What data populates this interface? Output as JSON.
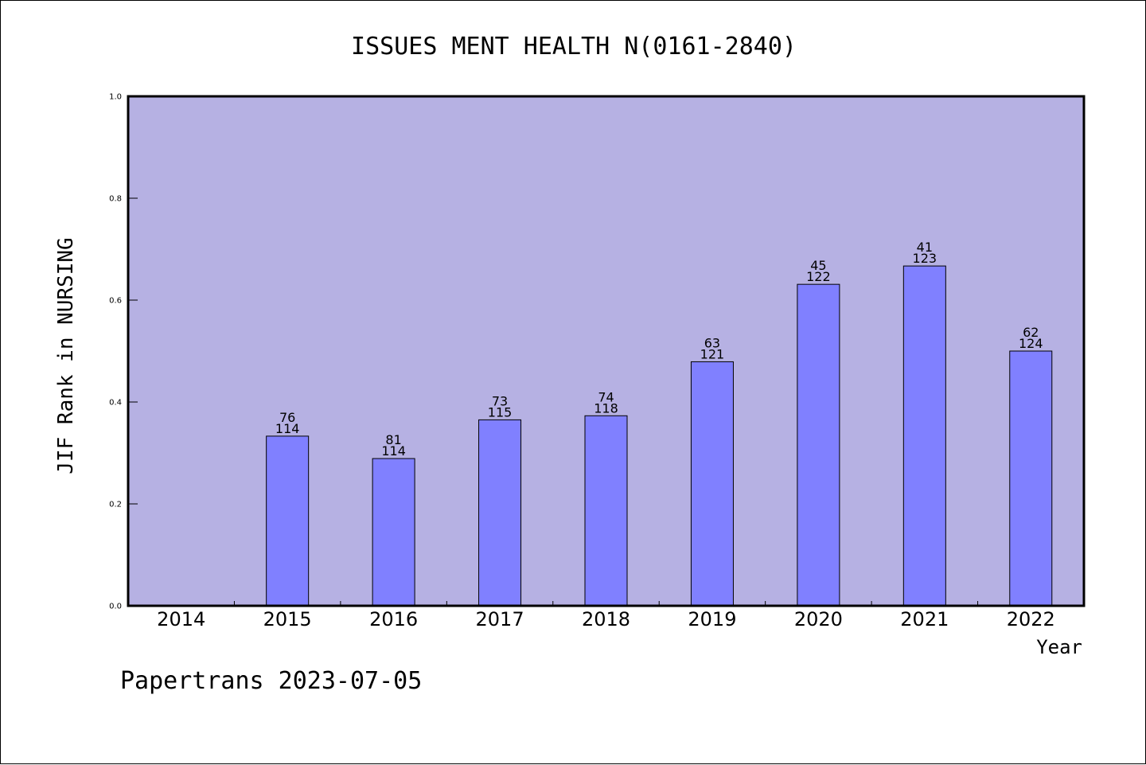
{
  "chart_data": {
    "type": "bar",
    "title": "ISSUES MENT HEALTH N(0161-2840)",
    "xlabel": "Year",
    "ylabel": "JIF Rank in NURSING",
    "ylim": [
      0,
      1.0
    ],
    "yticks": [
      "0.0",
      "0.2",
      "0.4",
      "0.6",
      "0.8",
      "1.0"
    ],
    "grid": false,
    "categories": [
      "2014",
      "2015",
      "2016",
      "2017",
      "2018",
      "2019",
      "2020",
      "2021",
      "2022"
    ],
    "values": [
      null,
      0.333,
      0.289,
      0.365,
      0.373,
      0.479,
      0.631,
      0.667,
      0.5
    ],
    "rank": [
      null,
      "76",
      "81",
      "73",
      "74",
      "63",
      "45",
      "41",
      "62"
    ],
    "total": [
      null,
      "114",
      "114",
      "115",
      "118",
      "121",
      "122",
      "123",
      "124"
    ],
    "colors": {
      "plot_background": "#b6b1e3",
      "bar_fill": "#8080ff",
      "bar_stroke": "#000000"
    }
  },
  "footer": "Papertrans 2023-07-05"
}
